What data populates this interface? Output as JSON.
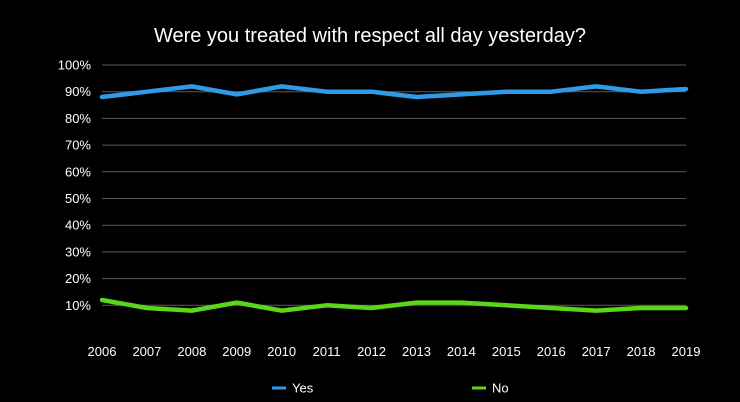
{
  "chart_data": {
    "type": "line",
    "title": "Were you treated with respect all day yesterday?",
    "xlabel": "",
    "ylabel": "",
    "categories": [
      "2006",
      "2007",
      "2008",
      "2009",
      "2010",
      "2011",
      "2012",
      "2013",
      "2014",
      "2015",
      "2016",
      "2017",
      "2018",
      "2019"
    ],
    "y_ticks": [
      "10%",
      "20%",
      "30%",
      "40%",
      "50%",
      "60%",
      "70%",
      "80%",
      "90%",
      "100%"
    ],
    "ylim": [
      0,
      100
    ],
    "grid": true,
    "legend_position": "bottom",
    "series": [
      {
        "name": "Yes",
        "color": "#2f9be8",
        "values": [
          88,
          90,
          92,
          89,
          92,
          90,
          90,
          88,
          89,
          90,
          90,
          92,
          90,
          91
        ]
      },
      {
        "name": "No",
        "color": "#5cd619",
        "values": [
          12,
          9,
          8,
          11,
          8,
          10,
          9,
          11,
          11,
          10,
          9,
          8,
          9,
          9
        ]
      }
    ]
  }
}
